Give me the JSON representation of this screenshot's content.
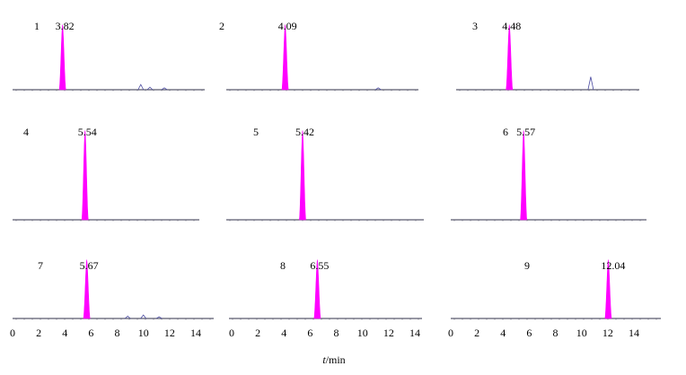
{
  "chart_data": [
    {
      "type": "line",
      "panel": "1",
      "retention_time": "3.82",
      "peak_x": 3.82,
      "minor_features": [
        {
          "x": 9.8,
          "height": 0.08
        },
        {
          "x": 10.5,
          "height": 0.04
        },
        {
          "x": 11.6,
          "height": 0.03
        }
      ],
      "xlim": [
        0,
        15
      ]
    },
    {
      "type": "line",
      "panel": "2",
      "retention_time": "4.09",
      "peak_x": 4.09,
      "minor_features": [
        {
          "x": 11.2,
          "height": 0.03
        }
      ],
      "xlim": [
        0,
        15
      ]
    },
    {
      "type": "line",
      "panel": "3",
      "retention_time": "4.48",
      "peak_x": 4.48,
      "minor_features": [
        {
          "x": 10.7,
          "height": 0.2
        }
      ],
      "xlim": [
        0,
        15
      ]
    },
    {
      "type": "line",
      "panel": "4",
      "retention_time": "5.54",
      "peak_x": 5.54,
      "minor_features": [],
      "xlim": [
        0,
        15
      ]
    },
    {
      "type": "line",
      "panel": "5",
      "retention_time": "5.42",
      "peak_x": 5.42,
      "minor_features": [],
      "xlim": [
        0,
        15
      ]
    },
    {
      "type": "line",
      "panel": "6",
      "retention_time": "5.57",
      "peak_x": 5.57,
      "minor_features": [],
      "xlim": [
        0,
        15
      ]
    },
    {
      "type": "line",
      "panel": "7",
      "retention_time": "5.67",
      "peak_x": 5.67,
      "minor_features": [
        {
          "x": 8.8,
          "height": 0.04
        },
        {
          "x": 10.0,
          "height": 0.06
        },
        {
          "x": 11.2,
          "height": 0.03
        }
      ],
      "xlim": [
        0,
        15
      ]
    },
    {
      "type": "line",
      "panel": "8",
      "retention_time": "6.55",
      "peak_x": 6.55,
      "minor_features": [],
      "xlim": [
        0,
        15
      ]
    },
    {
      "type": "line",
      "panel": "9",
      "retention_time": "12.04",
      "peak_x": 12.04,
      "minor_features": [],
      "xlim": [
        0,
        15
      ]
    }
  ],
  "x_ticks": [
    "0",
    "2",
    "4",
    "6",
    "8",
    "10",
    "12",
    "14"
  ],
  "x_tick_values": [
    0,
    2,
    4,
    6,
    8,
    10,
    12,
    14
  ],
  "xlabel_italic": "t",
  "xlabel_unit": "/min",
  "colors": {
    "peak": "#ff00ff",
    "baseline": "#5a5a6e",
    "text": "#000000"
  }
}
